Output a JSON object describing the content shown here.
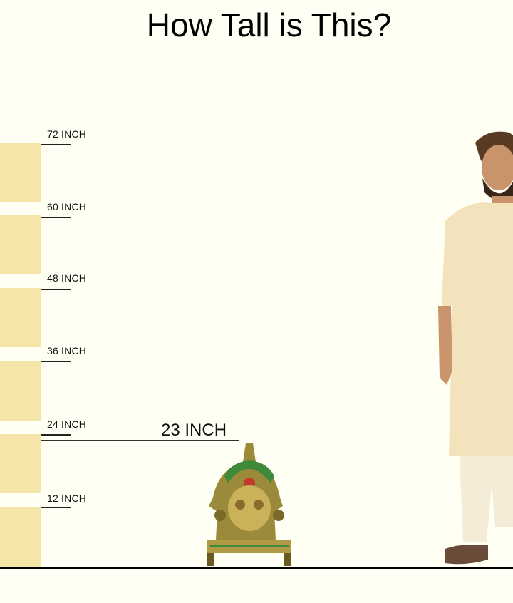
{
  "title": "How Tall is This?",
  "scale": {
    "unit": "INCH",
    "marks": [
      "72 INCH",
      "60 INCH",
      "48 INCH",
      "36 INCH",
      "24 INCH",
      "12 INCH"
    ]
  },
  "product": {
    "height_label": "23 INCH",
    "height_inches": 23
  },
  "colors": {
    "background": "#fffff4",
    "scale_block": "#f6e5a9",
    "line": "#000000"
  }
}
